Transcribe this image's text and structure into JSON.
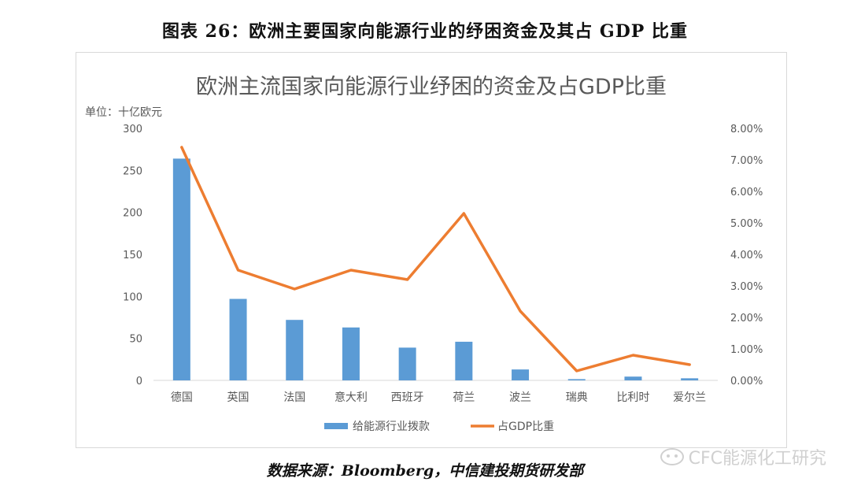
{
  "figure_caption": "图表 26：欧洲主要国家向能源行业的纾困资金及其占 GDP 比重",
  "source": "数据来源：Bloomberg，中信建投期货研发部",
  "watermark": "CFC能源化工研究",
  "chart_data": {
    "type": "bar",
    "title": "欧洲主流国家向能源行业纾困的资金及占GDP比重",
    "unit_label": "单位：十亿欧元",
    "categories": [
      "德国",
      "英国",
      "法国",
      "意大利",
      "西班牙",
      "荷兰",
      "波兰",
      "瑞典",
      "比利时",
      "爱尔兰"
    ],
    "y_left": {
      "ylim": [
        0,
        300
      ],
      "ticks": [
        "0",
        "50",
        "100",
        "150",
        "200",
        "250",
        "300"
      ]
    },
    "y_right": {
      "ylim": [
        0,
        8
      ],
      "ticks": [
        "0.00%",
        "1.00%",
        "2.00%",
        "3.00%",
        "4.00%",
        "5.00%",
        "6.00%",
        "7.00%",
        "8.00%"
      ]
    },
    "series": [
      {
        "name": "给能源行业拨款",
        "type": "bar",
        "axis": "left",
        "color": "#5b9bd5",
        "values": [
          264,
          97,
          72,
          63,
          39,
          46,
          13,
          1.5,
          4.5,
          2.5
        ]
      },
      {
        "name": "占GDP比重",
        "type": "line",
        "axis": "right",
        "color": "#ed7d31",
        "values": [
          7.4,
          3.5,
          2.9,
          3.5,
          3.2,
          5.3,
          2.2,
          0.3,
          0.8,
          0.5
        ]
      }
    ],
    "legend_position": "bottom",
    "grid": false
  }
}
